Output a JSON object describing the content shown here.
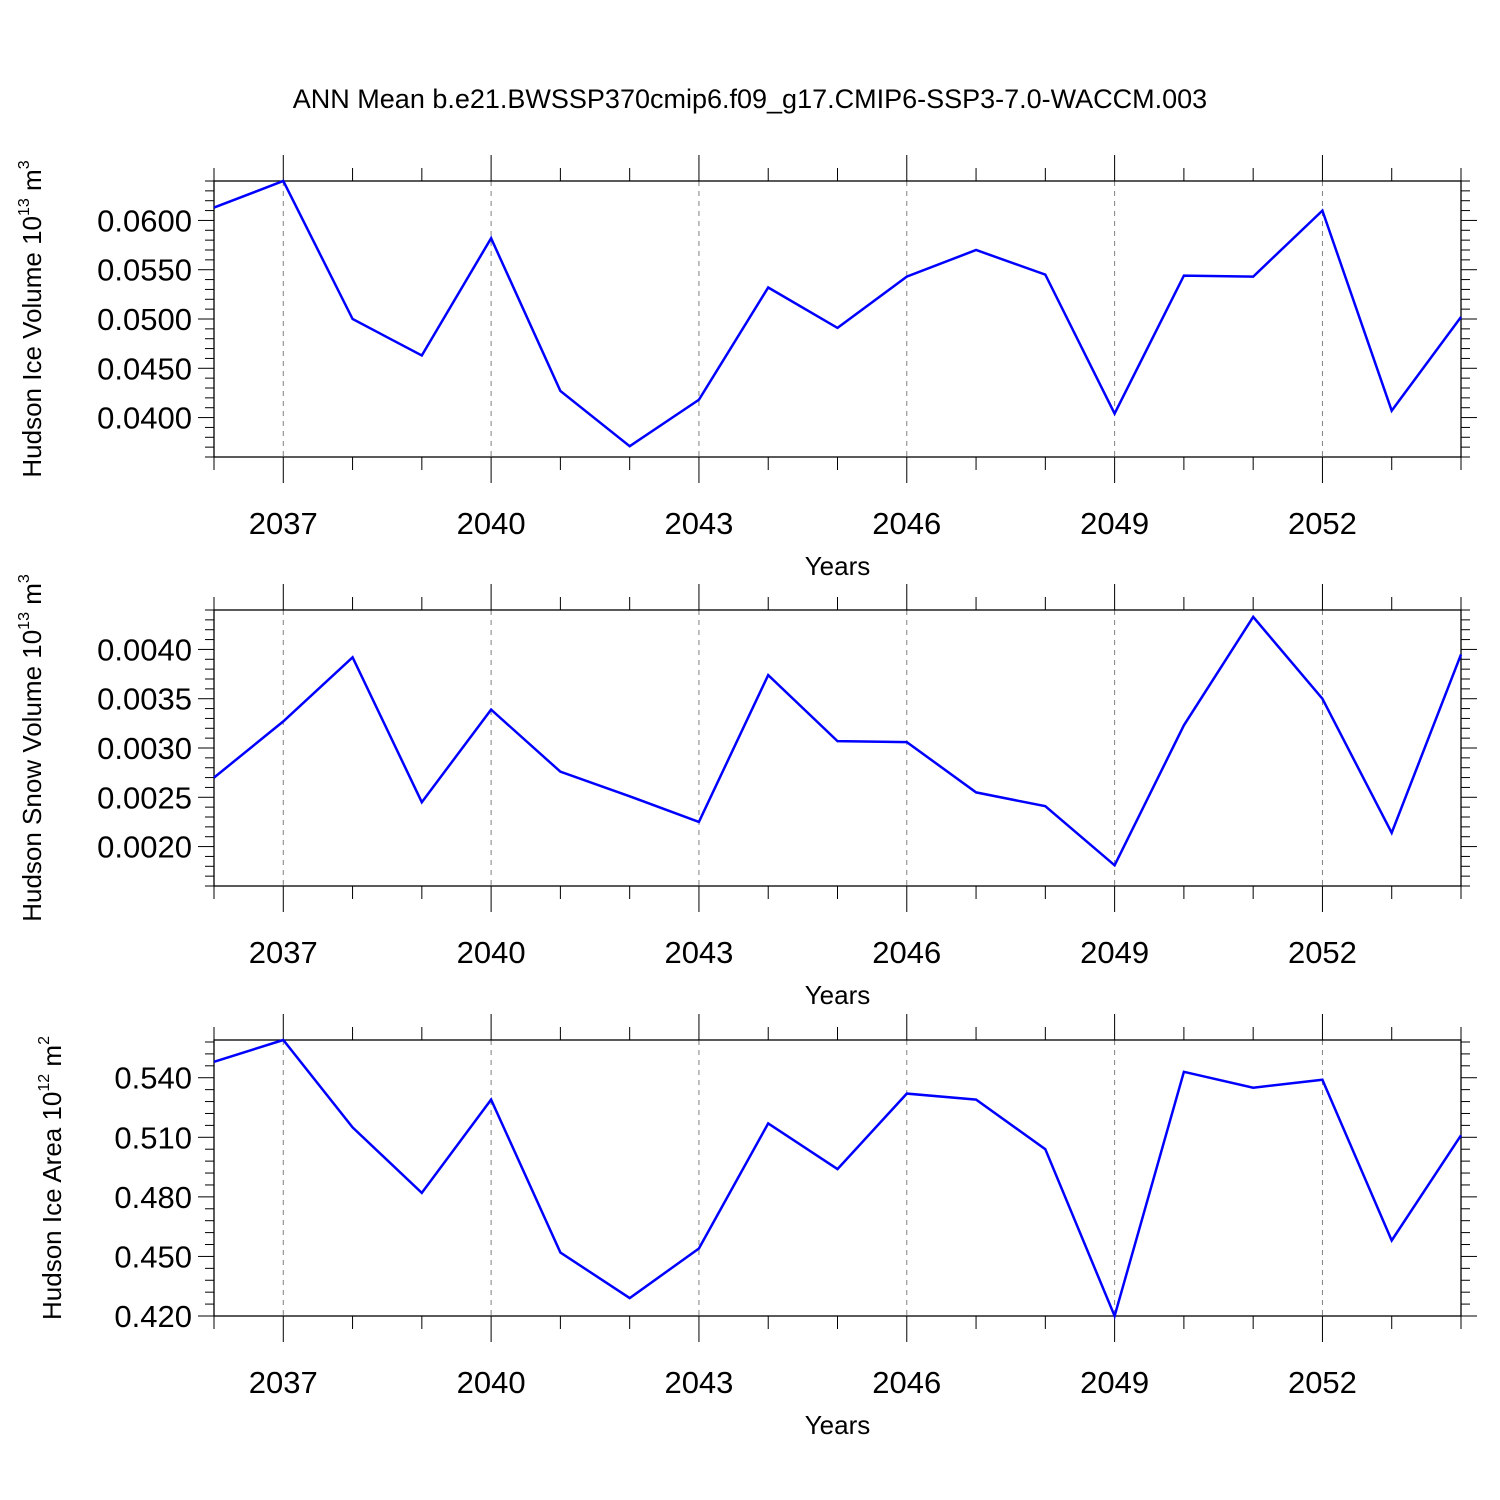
{
  "title": "ANN Mean b.e21.BWSSP370cmip6.f09_g17.CMIP6-SSP3-7.0-WACCM.003",
  "colors": {
    "line": "#0000ff",
    "frame": "#000000",
    "grid": "#808080"
  },
  "chart_data": [
    {
      "type": "line",
      "ylabel": "Hudson Ice Volume",
      "ylabel_unit": "10",
      "ylabel_exp": "13",
      "ylabel_unit2": "m",
      "ylabel_exp2": "3",
      "xlabel": "Years",
      "xlim": [
        2036,
        2054
      ],
      "ylim": [
        0.036,
        0.064
      ],
      "xticks": [
        2037,
        2040,
        2043,
        2046,
        2049,
        2052
      ],
      "yticks": [
        0.04,
        0.045,
        0.05,
        0.055,
        0.06
      ],
      "ytick_labels": [
        "0.0400",
        "0.0450",
        "0.0500",
        "0.0550",
        "0.0600"
      ],
      "x": [
        2036,
        2037,
        2038,
        2039,
        2040,
        2041,
        2042,
        2043,
        2044,
        2045,
        2046,
        2047,
        2048,
        2049,
        2050,
        2051,
        2052,
        2053,
        2054
      ],
      "values": [
        0.0613,
        0.064,
        0.05,
        0.0463,
        0.0582,
        0.0427,
        0.0371,
        0.0418,
        0.0532,
        0.0491,
        0.0543,
        0.057,
        0.0545,
        0.0404,
        0.0544,
        0.0543,
        0.061,
        0.0407,
        0.0502
      ]
    },
    {
      "type": "line",
      "ylabel": "Hudson Snow Volume",
      "ylabel_unit": "10",
      "ylabel_exp": "13",
      "ylabel_unit2": "m",
      "ylabel_exp2": "3",
      "xlabel": "Years",
      "xlim": [
        2036,
        2054
      ],
      "ylim": [
        0.0016,
        0.0044
      ],
      "xticks": [
        2037,
        2040,
        2043,
        2046,
        2049,
        2052
      ],
      "yticks": [
        0.002,
        0.0025,
        0.003,
        0.0035,
        0.004
      ],
      "ytick_labels": [
        "0.0020",
        "0.0025",
        "0.0030",
        "0.0035",
        "0.0040"
      ],
      "x": [
        2036,
        2037,
        2038,
        2039,
        2040,
        2041,
        2042,
        2043,
        2044,
        2045,
        2046,
        2047,
        2048,
        2049,
        2050,
        2051,
        2052,
        2053,
        2054
      ],
      "values": [
        0.0027,
        0.00327,
        0.00392,
        0.00245,
        0.00339,
        0.00276,
        0.00251,
        0.00225,
        0.00374,
        0.00307,
        0.00306,
        0.00255,
        0.00241,
        0.00181,
        0.00323,
        0.00433,
        0.0035,
        0.00214,
        0.00395
      ]
    },
    {
      "type": "line",
      "ylabel": "Hudson Ice Area",
      "ylabel_unit": "10",
      "ylabel_exp": "12",
      "ylabel_unit2": "m",
      "ylabel_exp2": "2",
      "xlabel": "Years",
      "xlim": [
        2036,
        2054
      ],
      "ylim": [
        0.42,
        0.559
      ],
      "xticks": [
        2037,
        2040,
        2043,
        2046,
        2049,
        2052
      ],
      "yticks": [
        0.42,
        0.45,
        0.48,
        0.51,
        0.54
      ],
      "ytick_labels": [
        "0.420",
        "0.450",
        "0.480",
        "0.510",
        "0.540"
      ],
      "x": [
        2036,
        2037,
        2038,
        2039,
        2040,
        2041,
        2042,
        2043,
        2044,
        2045,
        2046,
        2047,
        2048,
        2049,
        2050,
        2051,
        2052,
        2053,
        2054
      ],
      "values": [
        0.548,
        0.559,
        0.515,
        0.482,
        0.529,
        0.452,
        0.429,
        0.454,
        0.517,
        0.494,
        0.532,
        0.529,
        0.504,
        0.42,
        0.543,
        0.535,
        0.539,
        0.458,
        0.511
      ]
    }
  ]
}
